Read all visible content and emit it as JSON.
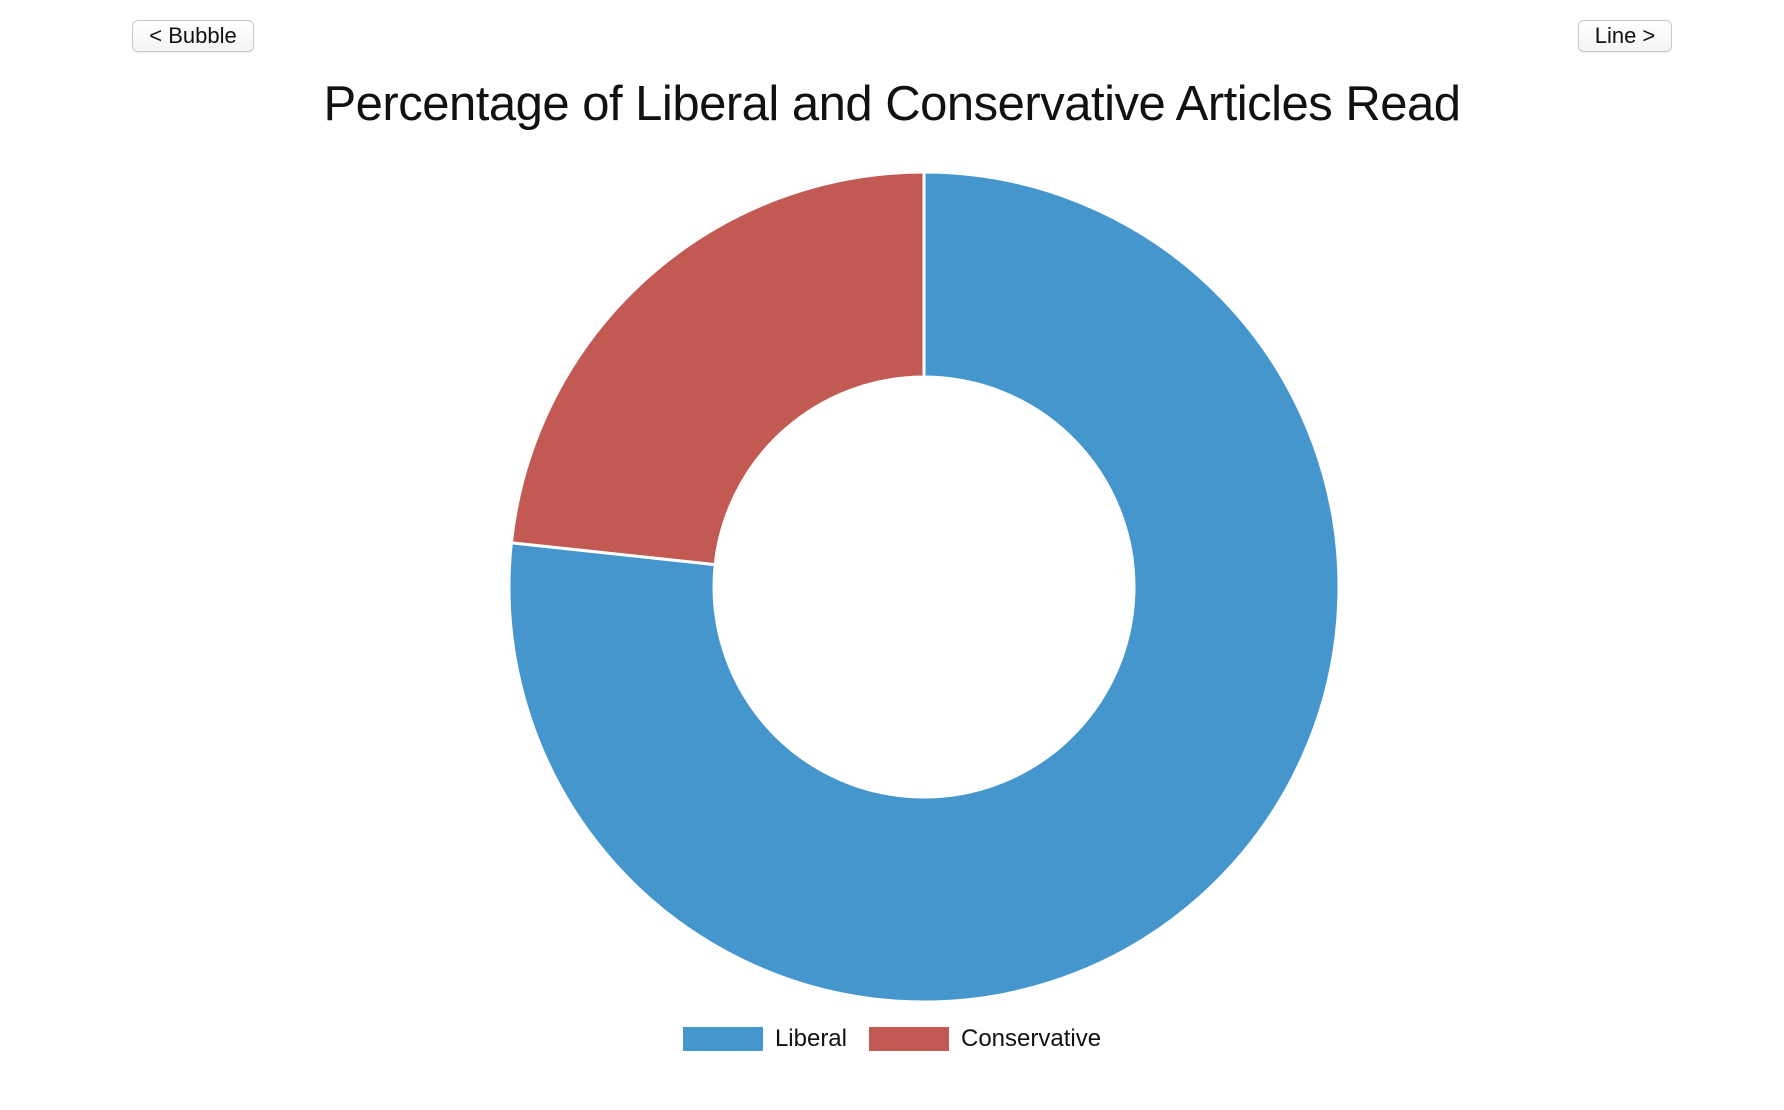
{
  "nav": {
    "prev_label": "< Bubble",
    "next_label": "Line >"
  },
  "chart_data": {
    "type": "pie",
    "donut": true,
    "title": "Percentage of Liberal and Conservative Articles Read",
    "categories": [
      "Liberal",
      "Conservative"
    ],
    "values": [
      76.7,
      23.3
    ],
    "colors": [
      "#4596cc",
      "#c25a53"
    ],
    "legend": "bottom"
  }
}
